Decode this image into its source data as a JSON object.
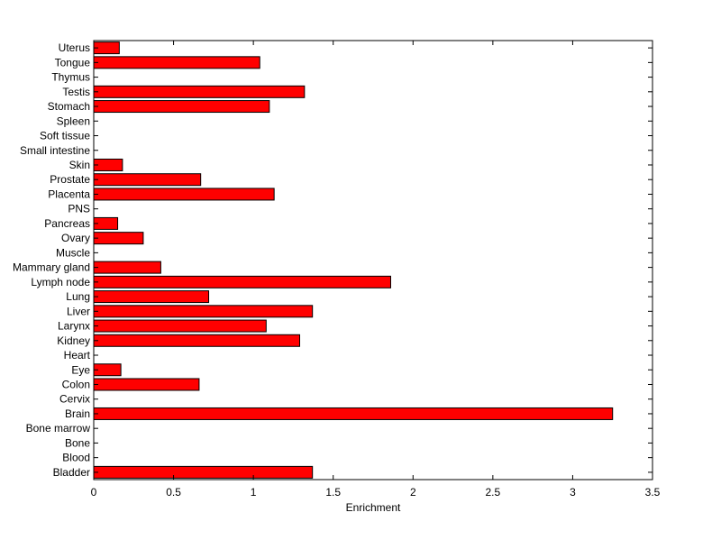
{
  "chart_data": {
    "type": "bar",
    "orientation": "horizontal",
    "title": "",
    "xlabel": "Enrichment",
    "ylabel": "",
    "xlim": [
      0,
      3.5
    ],
    "xticks": [
      0,
      0.5,
      1,
      1.5,
      2,
      2.5,
      3,
      3.5
    ],
    "xtick_labels": [
      "0",
      "0.5",
      "1",
      "1.5",
      "2",
      "2.5",
      "3",
      "3.5"
    ],
    "grid": false,
    "legend": "none",
    "bar_color": "#ff0000",
    "bar_edge_color": "#000000",
    "categories": [
      "Bladder",
      "Blood",
      "Bone",
      "Bone marrow",
      "Brain",
      "Cervix",
      "Colon",
      "Eye",
      "Heart",
      "Kidney",
      "Larynx",
      "Liver",
      "Lung",
      "Lymph node",
      "Mammary gland",
      "Muscle",
      "Ovary",
      "Pancreas",
      "PNS",
      "Placenta",
      "Prostate",
      "Skin",
      "Small intestine",
      "Soft tissue",
      "Spleen",
      "Stomach",
      "Testis",
      "Thymus",
      "Tongue",
      "Uterus"
    ],
    "values": [
      1.37,
      0,
      0,
      0,
      3.25,
      0,
      0.66,
      0.17,
      0,
      1.29,
      1.08,
      1.37,
      0.72,
      1.86,
      0.42,
      0,
      0.31,
      0.15,
      0,
      1.13,
      0.67,
      0.18,
      0,
      0,
      0,
      1.1,
      1.32,
      0,
      1.04,
      0.16
    ]
  }
}
